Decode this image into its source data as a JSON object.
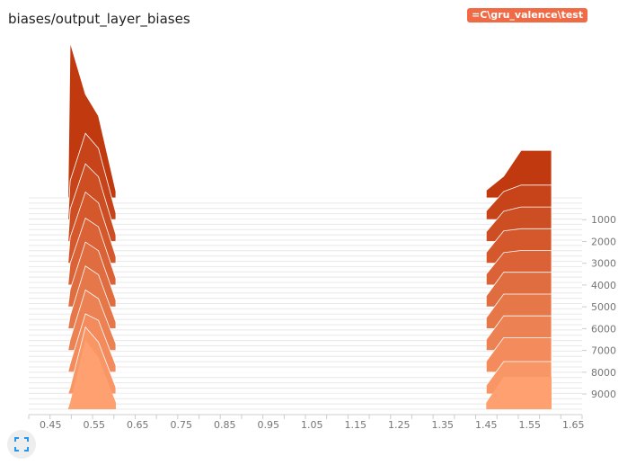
{
  "card": {
    "title": "biases/output_layer_biases",
    "run_label": "=C\\gru_valence\\test"
  },
  "icons": {
    "fit": "fit-to-screen-icon"
  },
  "colors": {
    "accent": "#f06a45",
    "line_old": "#c1390f",
    "fill_new": "#ffa070"
  },
  "chart_data": {
    "type": "histogram-offset",
    "title": "biases/output_layer_biases",
    "x_ticks": [
      "0.45",
      "0.55",
      "0.65",
      "0.75",
      "0.85",
      "0.95",
      "1.05",
      "1.15",
      "1.25",
      "1.35",
      "1.45",
      "1.55",
      "1.65"
    ],
    "x_range": [
      0.4,
      1.67
    ],
    "step_ticks": [
      "1000",
      "2000",
      "3000",
      "4000",
      "5000",
      "6000",
      "7000",
      "8000",
      "9000"
    ],
    "step_range": [
      0,
      9700
    ],
    "series": [
      {
        "step": 0,
        "bins": [
          [
            0.49,
            0
          ],
          [
            0.495,
            7.2
          ],
          [
            0.53,
            4.8
          ],
          [
            0.56,
            3.8
          ],
          [
            0.6,
            0.3
          ],
          [
            0.6,
            0
          ],
          [
            1.45,
            0
          ],
          [
            1.45,
            0.35
          ],
          [
            1.49,
            1.0
          ],
          [
            1.53,
            2.2
          ],
          [
            1.6,
            2.2
          ],
          [
            1.6,
            0
          ]
        ]
      },
      {
        "step": 1000,
        "bins": [
          [
            0.49,
            0
          ],
          [
            0.495,
            1.8
          ],
          [
            0.53,
            4.0
          ],
          [
            0.56,
            3.3
          ],
          [
            0.6,
            0.3
          ],
          [
            0.6,
            0
          ],
          [
            1.45,
            0
          ],
          [
            1.45,
            0.4
          ],
          [
            1.49,
            1.3
          ],
          [
            1.53,
            1.6
          ],
          [
            1.6,
            1.6
          ],
          [
            1.6,
            0
          ]
        ]
      },
      {
        "step": 2000,
        "bins": [
          [
            0.49,
            0
          ],
          [
            0.495,
            1.5
          ],
          [
            0.53,
            3.6
          ],
          [
            0.56,
            3.0
          ],
          [
            0.6,
            0.3
          ],
          [
            0.6,
            0
          ],
          [
            1.45,
            0
          ],
          [
            1.45,
            0.45
          ],
          [
            1.49,
            1.4
          ],
          [
            1.53,
            1.6
          ],
          [
            1.6,
            1.6
          ],
          [
            1.6,
            0
          ]
        ]
      },
      {
        "step": 3000,
        "bins": [
          [
            0.49,
            0
          ],
          [
            0.495,
            1.2
          ],
          [
            0.53,
            3.3
          ],
          [
            0.56,
            2.8
          ],
          [
            0.6,
            0.3
          ],
          [
            0.6,
            0
          ],
          [
            1.45,
            0
          ],
          [
            1.45,
            0.5
          ],
          [
            1.49,
            1.5
          ],
          [
            1.53,
            1.6
          ],
          [
            1.6,
            1.6
          ],
          [
            1.6,
            0
          ]
        ]
      },
      {
        "step": 4000,
        "bins": [
          [
            0.49,
            0
          ],
          [
            0.495,
            1.0
          ],
          [
            0.53,
            3.1
          ],
          [
            0.56,
            2.7
          ],
          [
            0.6,
            0.3
          ],
          [
            0.6,
            0
          ],
          [
            1.45,
            0
          ],
          [
            1.45,
            0.5
          ],
          [
            1.49,
            1.5
          ],
          [
            1.53,
            1.6
          ],
          [
            1.6,
            1.6
          ],
          [
            1.6,
            0
          ]
        ]
      },
      {
        "step": 5000,
        "bins": [
          [
            0.49,
            0
          ],
          [
            0.495,
            0.8
          ],
          [
            0.53,
            3.0
          ],
          [
            0.56,
            2.6
          ],
          [
            0.6,
            0.3
          ],
          [
            0.6,
            0
          ],
          [
            1.45,
            0
          ],
          [
            1.45,
            0.5
          ],
          [
            1.49,
            1.6
          ],
          [
            1.53,
            1.6
          ],
          [
            1.6,
            1.6
          ],
          [
            1.6,
            0
          ]
        ]
      },
      {
        "step": 6000,
        "bins": [
          [
            0.49,
            0
          ],
          [
            0.495,
            0.6
          ],
          [
            0.53,
            2.9
          ],
          [
            0.56,
            2.5
          ],
          [
            0.6,
            0.3
          ],
          [
            0.6,
            0
          ],
          [
            1.45,
            0
          ],
          [
            1.45,
            0.5
          ],
          [
            1.49,
            1.6
          ],
          [
            1.53,
            1.6
          ],
          [
            1.6,
            1.6
          ],
          [
            1.6,
            0
          ]
        ]
      },
      {
        "step": 7000,
        "bins": [
          [
            0.49,
            0
          ],
          [
            0.495,
            0.5
          ],
          [
            0.53,
            2.8
          ],
          [
            0.56,
            2.4
          ],
          [
            0.6,
            0.3
          ],
          [
            0.6,
            0
          ],
          [
            1.45,
            0
          ],
          [
            1.45,
            0.5
          ],
          [
            1.49,
            1.6
          ],
          [
            1.53,
            1.6
          ],
          [
            1.6,
            1.6
          ],
          [
            1.6,
            0
          ]
        ]
      },
      {
        "step": 8000,
        "bins": [
          [
            0.49,
            0
          ],
          [
            0.495,
            0.4
          ],
          [
            0.53,
            2.7
          ],
          [
            0.56,
            2.4
          ],
          [
            0.6,
            0.3
          ],
          [
            0.6,
            0
          ],
          [
            1.45,
            0
          ],
          [
            1.45,
            0.5
          ],
          [
            1.49,
            1.6
          ],
          [
            1.53,
            1.6
          ],
          [
            1.6,
            1.6
          ],
          [
            1.6,
            0
          ]
        ]
      },
      {
        "step": 9000,
        "bins": [
          [
            0.49,
            0
          ],
          [
            0.495,
            0.3
          ],
          [
            0.53,
            3.1
          ],
          [
            0.56,
            2.4
          ],
          [
            0.6,
            0.3
          ],
          [
            0.6,
            0
          ],
          [
            1.45,
            0
          ],
          [
            1.45,
            0.4
          ],
          [
            1.49,
            1.5
          ],
          [
            1.53,
            1.5
          ],
          [
            1.6,
            1.5
          ],
          [
            1.6,
            0
          ]
        ]
      },
      {
        "step": 9700,
        "bins": [
          [
            0.49,
            0
          ],
          [
            0.495,
            0.3
          ],
          [
            0.53,
            3.2
          ],
          [
            0.56,
            2.4
          ],
          [
            0.6,
            0.3
          ],
          [
            0.6,
            0
          ],
          [
            1.45,
            0
          ],
          [
            1.45,
            0.3
          ],
          [
            1.49,
            1.5
          ],
          [
            1.53,
            1.5
          ],
          [
            1.6,
            1.5
          ],
          [
            1.6,
            0
          ]
        ]
      }
    ]
  }
}
